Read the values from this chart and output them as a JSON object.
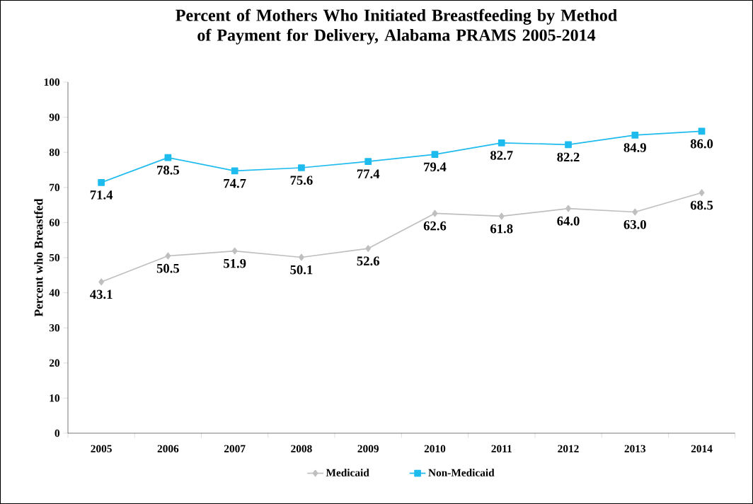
{
  "chart_data": {
    "type": "line",
    "title": "Percent of Mothers Who Initiated Breastfeeding by Method of Payment for Delivery, Alabama PRAMS 2005-2014",
    "ylabel": "Percent who Breastfed",
    "categories": [
      "2005",
      "2006",
      "2007",
      "2008",
      "2009",
      "2010",
      "2011",
      "2012",
      "2013",
      "2014"
    ],
    "series": [
      {
        "name": "Medicaid",
        "color": "#bfbfbf",
        "marker": "diamond",
        "values": [
          43.1,
          50.5,
          51.9,
          50.1,
          52.6,
          62.6,
          61.8,
          64.0,
          63.0,
          68.5
        ],
        "value_labels": [
          "43.1",
          "50.5",
          "51.9",
          "50.1",
          "52.6",
          "62.6",
          "61.8",
          "64.0",
          "63.0",
          "68.5"
        ]
      },
      {
        "name": "Non-Medicaid",
        "color": "#1ebbee",
        "marker": "square",
        "values": [
          71.4,
          78.5,
          74.7,
          75.6,
          77.4,
          79.4,
          82.7,
          82.2,
          84.9,
          86.0
        ],
        "value_labels": [
          "71.4",
          "78.5",
          "74.7",
          "75.6",
          "77.4",
          "79.4",
          "82.7",
          "82.2",
          "84.9",
          "86.0"
        ]
      }
    ],
    "ylim": [
      0,
      100
    ],
    "yticks": [
      0,
      10,
      20,
      30,
      40,
      50,
      60,
      70,
      80,
      90,
      100
    ],
    "legend": "bottom"
  }
}
